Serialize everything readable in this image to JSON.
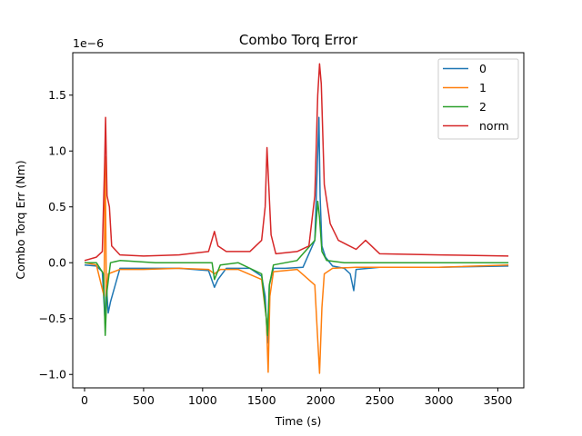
{
  "chart_data": {
    "type": "line",
    "title": "Combo Torq Error",
    "xlabel": "Time (s)",
    "ylabel": "Combo Torq Err (Nm)",
    "y_offset_label": "1e−6",
    "xlim": [
      -100,
      3720
    ],
    "ylim": [
      -1.12,
      1.88
    ],
    "x_ticks": [
      0,
      500,
      1000,
      1500,
      2000,
      2500,
      3000,
      3500
    ],
    "x_tick_labels": [
      "0",
      "500",
      "1000",
      "1500",
      "2000",
      "2500",
      "3000",
      "3500"
    ],
    "y_ticks": [
      -1.0,
      -0.5,
      0.0,
      0.5,
      1.0,
      1.5
    ],
    "y_tick_labels": [
      "−1.0",
      "−0.5",
      "0.0",
      "0.5",
      "1.0",
      "1.5"
    ],
    "grid": false,
    "legend_position": "top-right",
    "series": [
      {
        "name": "0",
        "color": "#1f77b4",
        "x": [
          0,
          100,
          150,
          175,
          185,
          200,
          220,
          300,
          500,
          800,
          1050,
          1100,
          1130,
          1200,
          1400,
          1500,
          1530,
          1550,
          1565,
          1600,
          1700,
          1850,
          1950,
          1985,
          1995,
          2010,
          2040,
          2100,
          2200,
          2250,
          2280,
          2300,
          2500,
          3000,
          3590
        ],
        "values": [
          -0.02,
          -0.03,
          -0.08,
          -0.55,
          -0.2,
          -0.45,
          -0.35,
          -0.05,
          -0.05,
          -0.05,
          -0.07,
          -0.22,
          -0.15,
          -0.05,
          -0.05,
          -0.12,
          -0.3,
          -0.72,
          -0.2,
          -0.05,
          -0.05,
          -0.04,
          0.2,
          1.3,
          0.6,
          0.15,
          0.05,
          -0.03,
          -0.05,
          -0.1,
          -0.25,
          -0.06,
          -0.04,
          -0.04,
          -0.03
        ]
      },
      {
        "name": "1",
        "color": "#ff7f0e",
        "x": [
          0,
          100,
          165,
          175,
          185,
          200,
          300,
          500,
          800,
          1050,
          1100,
          1150,
          1300,
          1500,
          1540,
          1555,
          1570,
          1600,
          1800,
          1950,
          1970,
          1990,
          2010,
          2030,
          2100,
          2300,
          2500,
          3000,
          3590
        ],
        "values": [
          0.0,
          -0.02,
          -0.3,
          0.95,
          -0.3,
          -0.1,
          -0.06,
          -0.06,
          -0.05,
          -0.06,
          -0.1,
          -0.06,
          -0.06,
          -0.15,
          -0.5,
          -0.98,
          -0.3,
          -0.08,
          -0.06,
          -0.2,
          -0.6,
          -0.99,
          -0.4,
          -0.1,
          -0.05,
          -0.04,
          -0.04,
          -0.04,
          -0.02
        ]
      },
      {
        "name": "2",
        "color": "#2ca02c",
        "x": [
          0,
          100,
          160,
          175,
          190,
          220,
          300,
          600,
          900,
          1080,
          1100,
          1150,
          1300,
          1500,
          1540,
          1550,
          1565,
          1600,
          1800,
          1950,
          1975,
          1990,
          2010,
          2050,
          2200,
          2500,
          3000,
          3590
        ],
        "values": [
          0.0,
          0.0,
          -0.1,
          -0.65,
          -0.25,
          0.0,
          0.02,
          0.0,
          0.0,
          0.0,
          -0.15,
          -0.02,
          0.0,
          -0.1,
          -0.5,
          -0.65,
          -0.2,
          -0.02,
          0.02,
          0.2,
          0.55,
          0.4,
          0.1,
          0.02,
          0.0,
          0.0,
          0.0,
          0.0
        ]
      },
      {
        "name": "norm",
        "color": "#d62728",
        "x": [
          0,
          100,
          150,
          170,
          178,
          190,
          210,
          230,
          300,
          500,
          800,
          1050,
          1100,
          1130,
          1200,
          1400,
          1500,
          1530,
          1545,
          1560,
          1580,
          1620,
          1800,
          1900,
          1950,
          1975,
          1990,
          2005,
          2030,
          2080,
          2150,
          2300,
          2380,
          2500,
          3000,
          3590
        ],
        "values": [
          0.02,
          0.05,
          0.1,
          0.9,
          1.3,
          0.6,
          0.5,
          0.15,
          0.07,
          0.06,
          0.07,
          0.1,
          0.28,
          0.15,
          0.1,
          0.1,
          0.2,
          0.5,
          1.03,
          0.7,
          0.25,
          0.08,
          0.1,
          0.15,
          0.6,
          1.5,
          1.78,
          1.6,
          0.7,
          0.35,
          0.2,
          0.12,
          0.2,
          0.08,
          0.07,
          0.06
        ]
      }
    ]
  }
}
